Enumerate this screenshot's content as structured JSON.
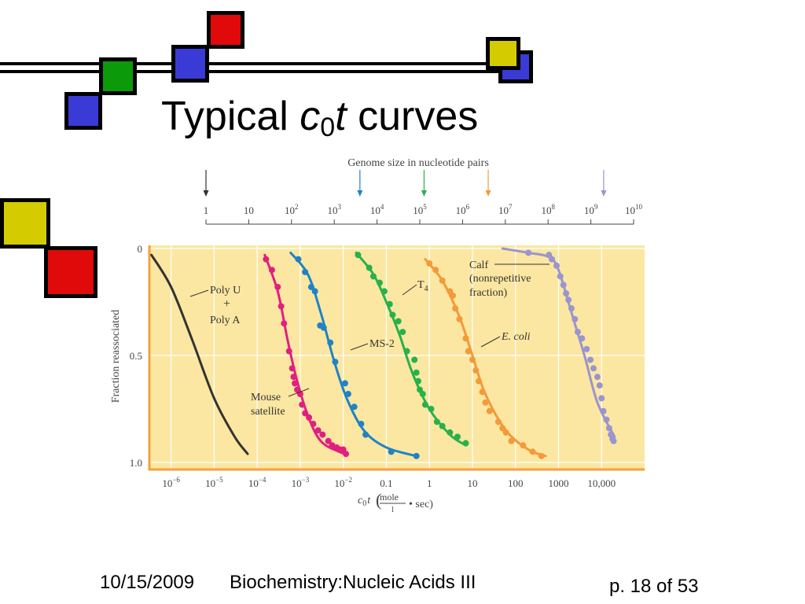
{
  "slide": {
    "title_prefix": "Typical ",
    "title_var": "c",
    "title_sub": "0",
    "title_var2": "t",
    "title_suffix": " curves"
  },
  "footer": {
    "date": "10/15/2009",
    "course": "Biochemistry:Nucleic Acids III",
    "page": "p. 18 of 53"
  },
  "colors": {
    "plot_bg": "#fbe7a1",
    "poly": "#333333",
    "mouse": "#e21f7f",
    "ms2": "#1f83c5",
    "t4": "#27b14b",
    "ecoli": "#f39a3a",
    "calf": "#9a94cf"
  },
  "chart_data": {
    "type": "line",
    "xscale": "log",
    "xlim": [
      3e-07,
      100000
    ],
    "ylim": [
      0,
      1
    ],
    "y_inverted": true,
    "ylabel": "Fraction reassociated",
    "xlabel_var": "c",
    "xlabel_sub": "0",
    "xlabel_var2": "t",
    "xlabel_unit_num": "mole",
    "xlabel_unit_den": "l",
    "xlabel_unit_tail": "• sec)",
    "xlabel_unit_open": "(",
    "x_tick_labels": [
      {
        "pre": "10",
        "sup": "−6",
        "x": 1e-06
      },
      {
        "pre": "10",
        "sup": "−5",
        "x": 1e-05
      },
      {
        "pre": "10",
        "sup": "−4",
        "x": 0.0001
      },
      {
        "pre": "10",
        "sup": "−3",
        "x": 0.001
      },
      {
        "pre": "10",
        "sup": "−2",
        "x": 0.01
      },
      {
        "pre": "0.1",
        "sup": "",
        "x": 0.1
      },
      {
        "pre": "1",
        "sup": "",
        "x": 1
      },
      {
        "pre": "10",
        "sup": "",
        "x": 10
      },
      {
        "pre": "100",
        "sup": "",
        "x": 100
      },
      {
        "pre": "1000",
        "sup": "",
        "x": 1000
      },
      {
        "pre": "10,000",
        "sup": "",
        "x": 10000
      }
    ],
    "y_tick_labels": [
      {
        "label": "0",
        "y": 0
      },
      {
        "label": "0.5",
        "y": 0.5
      },
      {
        "label": "1.0",
        "y": 1
      }
    ],
    "genome_axis": {
      "title": "Genome size in nucleotide pairs",
      "ticks": [
        {
          "pre": "1",
          "sup": "",
          "exp": 0
        },
        {
          "pre": "10",
          "sup": "",
          "exp": 1
        },
        {
          "pre": "10",
          "sup": "2",
          "exp": 2
        },
        {
          "pre": "10",
          "sup": "3",
          "exp": 3
        },
        {
          "pre": "10",
          "sup": "4",
          "exp": 4
        },
        {
          "pre": "10",
          "sup": "5",
          "exp": 5
        },
        {
          "pre": "10",
          "sup": "6",
          "exp": 6
        },
        {
          "pre": "10",
          "sup": "7",
          "exp": 7
        },
        {
          "pre": "10",
          "sup": "8",
          "exp": 8
        },
        {
          "pre": "10",
          "sup": "9",
          "exp": 9
        },
        {
          "pre": "10",
          "sup": "10",
          "exp": 10
        }
      ],
      "markers": [
        {
          "series": "poly",
          "exp": 0
        },
        {
          "series": "ms2",
          "exp": 3.6
        },
        {
          "series": "t4",
          "exp": 5.1
        },
        {
          "series": "ecoli",
          "exp": 6.6
        },
        {
          "series": "calf",
          "exp": 9.3
        }
      ]
    },
    "series": [
      {
        "key": "poly",
        "label_lines": [
          "Poly U",
          "+",
          "Poly A"
        ],
        "curve": [
          [
            3.5e-07,
            0.03
          ],
          [
            1e-06,
            0.18
          ],
          [
            3e-06,
            0.42
          ],
          [
            1e-05,
            0.7
          ],
          [
            3e-05,
            0.88
          ],
          [
            6e-05,
            0.96
          ]
        ],
        "points": []
      },
      {
        "key": "mouse",
        "label_lines": [
          "Mouse",
          "satellite"
        ],
        "curve": [
          [
            0.00015,
            0.03
          ],
          [
            0.0003,
            0.2
          ],
          [
            0.0005,
            0.42
          ],
          [
            0.0008,
            0.6
          ],
          [
            0.0015,
            0.78
          ],
          [
            0.003,
            0.9
          ],
          [
            0.008,
            0.95
          ],
          [
            0.012,
            0.96
          ]
        ],
        "points": [
          [
            0.00016,
            0.05
          ],
          [
            0.00022,
            0.1
          ],
          [
            0.0003,
            0.18
          ],
          [
            0.00036,
            0.27
          ],
          [
            0.00042,
            0.35
          ],
          [
            0.00055,
            0.48
          ],
          [
            0.00065,
            0.56
          ],
          [
            0.0007,
            0.6
          ],
          [
            0.00075,
            0.63
          ],
          [
            0.00085,
            0.66
          ],
          [
            0.001,
            0.68
          ],
          [
            0.0011,
            0.73
          ],
          [
            0.0013,
            0.77
          ],
          [
            0.0016,
            0.79
          ],
          [
            0.002,
            0.82
          ],
          [
            0.0026,
            0.85
          ],
          [
            0.0033,
            0.87
          ],
          [
            0.0045,
            0.9
          ],
          [
            0.0055,
            0.92
          ],
          [
            0.007,
            0.93
          ],
          [
            0.0085,
            0.94
          ],
          [
            0.01,
            0.94
          ],
          [
            0.0115,
            0.96
          ]
        ]
      },
      {
        "key": "ms2",
        "label_lines": [
          "MS-2"
        ],
        "curve": [
          [
            0.0006,
            0.02
          ],
          [
            0.0015,
            0.12
          ],
          [
            0.003,
            0.3
          ],
          [
            0.006,
            0.52
          ],
          [
            0.012,
            0.7
          ],
          [
            0.03,
            0.85
          ],
          [
            0.1,
            0.93
          ],
          [
            0.5,
            0.97
          ]
        ],
        "points": [
          [
            0.0009,
            0.05
          ],
          [
            0.0013,
            0.11
          ],
          [
            0.0018,
            0.18
          ],
          [
            0.0022,
            0.2
          ],
          [
            0.0029,
            0.36
          ],
          [
            0.0035,
            0.37
          ],
          [
            0.005,
            0.44
          ],
          [
            0.0065,
            0.53
          ],
          [
            0.011,
            0.63
          ],
          [
            0.013,
            0.68
          ],
          [
            0.018,
            0.74
          ],
          [
            0.026,
            0.82
          ],
          [
            0.033,
            0.87
          ],
          [
            0.13,
            0.95
          ],
          [
            0.5,
            0.97
          ]
        ]
      },
      {
        "key": "t4",
        "label_lines": [
          "T",
          "4"
        ],
        "curve": [
          [
            0.02,
            0.02
          ],
          [
            0.05,
            0.12
          ],
          [
            0.1,
            0.25
          ],
          [
            0.2,
            0.4
          ],
          [
            0.4,
            0.58
          ],
          [
            1,
            0.75
          ],
          [
            3,
            0.87
          ],
          [
            7,
            0.92
          ]
        ],
        "points": [
          [
            0.022,
            0.03
          ],
          [
            0.04,
            0.09
          ],
          [
            0.05,
            0.13
          ],
          [
            0.07,
            0.16
          ],
          [
            0.09,
            0.2
          ],
          [
            0.12,
            0.26
          ],
          [
            0.14,
            0.31
          ],
          [
            0.19,
            0.34
          ],
          [
            0.24,
            0.39
          ],
          [
            0.3,
            0.48
          ],
          [
            0.45,
            0.52
          ],
          [
            0.5,
            0.58
          ],
          [
            0.55,
            0.62
          ],
          [
            0.6,
            0.66
          ],
          [
            0.7,
            0.68
          ],
          [
            0.8,
            0.73
          ],
          [
            1.1,
            0.75
          ],
          [
            1.5,
            0.81
          ],
          [
            2,
            0.83
          ],
          [
            3,
            0.86
          ],
          [
            4.5,
            0.88
          ],
          [
            7,
            0.91
          ]
        ]
      },
      {
        "key": "ecoli",
        "label_lines": [
          "E. coli"
        ],
        "curve": [
          [
            0.8,
            0.05
          ],
          [
            2,
            0.15
          ],
          [
            5,
            0.32
          ],
          [
            10,
            0.5
          ],
          [
            20,
            0.68
          ],
          [
            60,
            0.85
          ],
          [
            200,
            0.94
          ],
          [
            500,
            0.97
          ]
        ],
        "points": [
          [
            1,
            0.07
          ],
          [
            1.4,
            0.1
          ],
          [
            2,
            0.15
          ],
          [
            3,
            0.2
          ],
          [
            3.5,
            0.22
          ],
          [
            4,
            0.28
          ],
          [
            5,
            0.33
          ],
          [
            7,
            0.42
          ],
          [
            8,
            0.48
          ],
          [
            10,
            0.52
          ],
          [
            12,
            0.57
          ],
          [
            14,
            0.62
          ],
          [
            17,
            0.67
          ],
          [
            20,
            0.72
          ],
          [
            25,
            0.76
          ],
          [
            40,
            0.81
          ],
          [
            50,
            0.84
          ],
          [
            60,
            0.86
          ],
          [
            80,
            0.9
          ],
          [
            150,
            0.92
          ],
          [
            250,
            0.95
          ],
          [
            400,
            0.97
          ]
        ]
      },
      {
        "key": "calf",
        "label_lines": [
          "Calf",
          "(nonrepetitive",
          "fraction)"
        ],
        "curve": [
          [
            50,
            0
          ],
          [
            200,
            0.02
          ],
          [
            600,
            0.04
          ],
          [
            1000,
            0.1
          ],
          [
            2000,
            0.3
          ],
          [
            4000,
            0.5
          ],
          [
            8000,
            0.72
          ],
          [
            20000,
            0.88
          ]
        ],
        "points": [
          [
            200,
            0.02
          ],
          [
            600,
            0.03
          ],
          [
            700,
            0.05
          ],
          [
            900,
            0.08
          ],
          [
            1100,
            0.13
          ],
          [
            1300,
            0.17
          ],
          [
            1500,
            0.21
          ],
          [
            1700,
            0.24
          ],
          [
            2000,
            0.28
          ],
          [
            2400,
            0.33
          ],
          [
            2800,
            0.39
          ],
          [
            3500,
            0.42
          ],
          [
            4500,
            0.47
          ],
          [
            5500,
            0.52
          ],
          [
            6500,
            0.56
          ],
          [
            8000,
            0.6
          ],
          [
            9000,
            0.64
          ],
          [
            10000,
            0.7
          ],
          [
            11000,
            0.76
          ],
          [
            13000,
            0.8
          ],
          [
            15000,
            0.84
          ],
          [
            16500,
            0.87
          ],
          [
            18000,
            0.89
          ],
          [
            19000,
            0.9
          ]
        ]
      }
    ]
  }
}
